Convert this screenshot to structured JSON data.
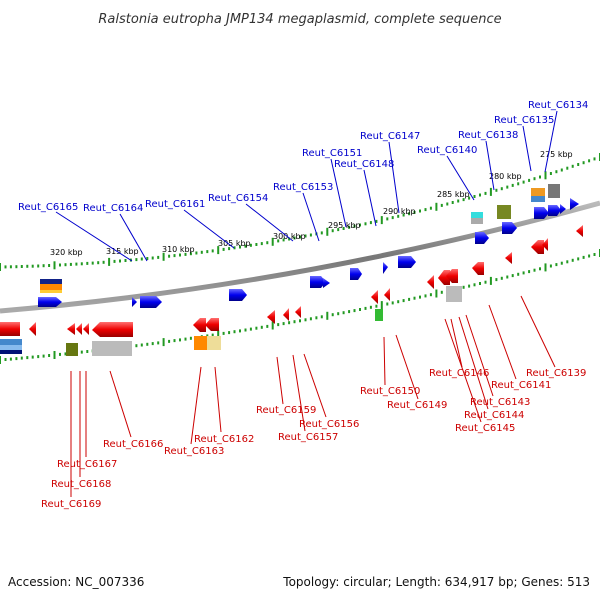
{
  "title": "Ralstonia eutropha JMP134 megaplasmid, complete sequence",
  "footer": {
    "accession": "Accession: NC_007336",
    "topology": "Topology: circular; Length: 634,917 bp; Genes: 513"
  },
  "colors": {
    "forward_gene": "#0000ee",
    "reverse_gene": "#ee0000",
    "backbone": "#888888",
    "tick": "#229922",
    "forward_label": "#0000cc",
    "reverse_label": "#cc0000"
  },
  "scale_labels": [
    "320 kbp",
    "315 kbp",
    "310 kbp",
    "305 kbp",
    "300 kbp",
    "295 kbp",
    "290 kbp",
    "285 kbp",
    "280 kbp",
    "275 kbp"
  ],
  "forward_labels": [
    "Reut_C6165",
    "Reut_C6164",
    "Reut_C6161",
    "Reut_C6154",
    "Reut_C6153",
    "Reut_C6151",
    "Reut_C6148",
    "Reut_C6147",
    "Reut_C6140",
    "Reut_C6138",
    "Reut_C6135",
    "Reut_C6134"
  ],
  "reverse_labels": [
    "Reut_C6166",
    "Reut_C6167",
    "Reut_C6168",
    "Reut_C6169",
    "Reut_C6162",
    "Reut_C6163",
    "Reut_C6159",
    "Reut_C6156",
    "Reut_C6157",
    "Reut_C6150",
    "Reut_C6149",
    "Reut_C6146",
    "Reut_C6141",
    "Reut_C6139",
    "Reut_C6143",
    "Reut_C6144",
    "Reut_C6145"
  ]
}
